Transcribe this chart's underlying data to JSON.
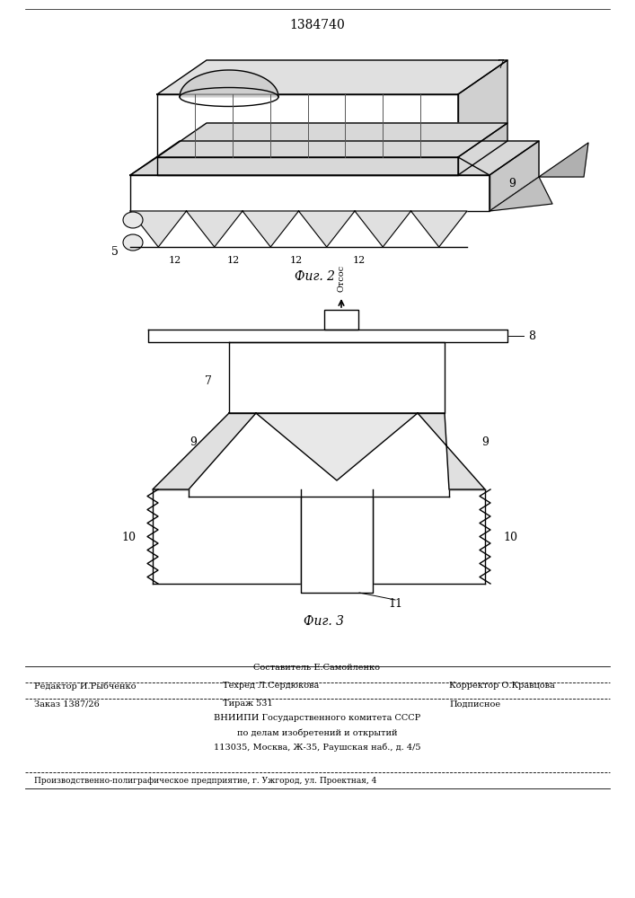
{
  "patent_number": "1384740",
  "bg_color": "#ffffff",
  "line_color": "#000000",
  "fig2_label": "Фиг. 2",
  "fig3_label": "Фиг. 3",
  "footer": {
    "line1_center": "Составитель Е.Самойленко",
    "line1_left": "Редактор И.Рыбченко",
    "line1_center2": "Техред Л.Сердюкова",
    "line1_right": "Корректор О.Кравцова",
    "line2_left": "Заказ 1387/26",
    "line2_center": "Тираж 531",
    "line2_right": "Подписное",
    "line3": "ВНИИПИ Государственного комитета СССР",
    "line4": "по делам изобретений и открытий",
    "line5": "113035, Москва, Ж-35, Раушская наб., д. 4/5",
    "line6": "Производственно-полиграфическое предприятие, г. Ужгород, ул. Проектная, 4"
  }
}
